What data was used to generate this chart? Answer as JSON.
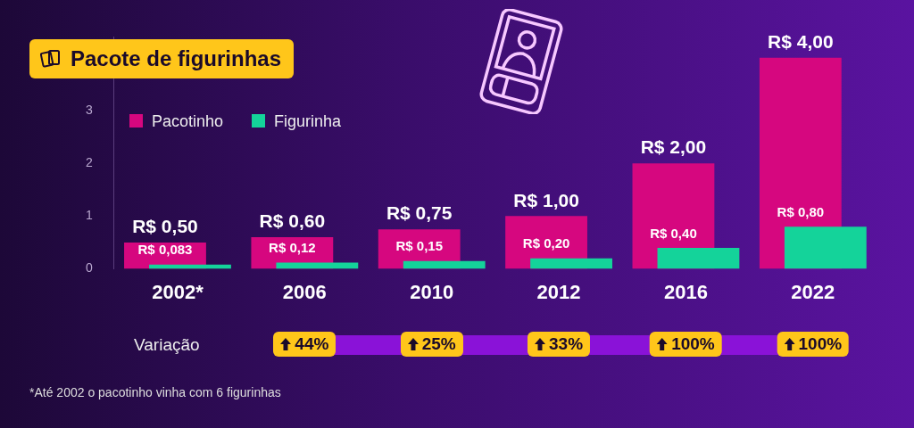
{
  "chart_data": {
    "type": "bar",
    "title": "Pacote de figurinhas",
    "categories": [
      "2002*",
      "2006",
      "2010",
      "2012",
      "2016",
      "2022"
    ],
    "series": [
      {
        "name": "Pacotinho",
        "color": "#d6077f",
        "values": [
          0.5,
          0.6,
          0.75,
          1,
          2,
          4
        ],
        "value_labels": [
          "R$ 0,50",
          "R$ 0,60",
          "R$ 0,75",
          "R$ 1,00",
          "R$ 2,00",
          "R$ 4,00"
        ]
      },
      {
        "name": "Figurinha",
        "color": "#14d39a",
        "values": [
          0.083,
          0.12,
          0.15,
          0.2,
          0.4,
          0.8
        ],
        "value_labels": [
          "R$ 0,083",
          "R$ 0,12",
          "R$ 0,15",
          "R$ 0,20",
          "R$ 0,40",
          "R$ 0,80"
        ]
      }
    ],
    "ylim": [
      0,
      4.4
    ],
    "yticks": [
      0,
      1,
      2,
      3
    ],
    "legend": "top left",
    "annotations": [
      "Variação",
      "44%",
      "25%",
      "33%",
      "100%",
      "100%",
      "*Até 2002 o pacotinho vinha com 6 figurinhas"
    ]
  }
}
